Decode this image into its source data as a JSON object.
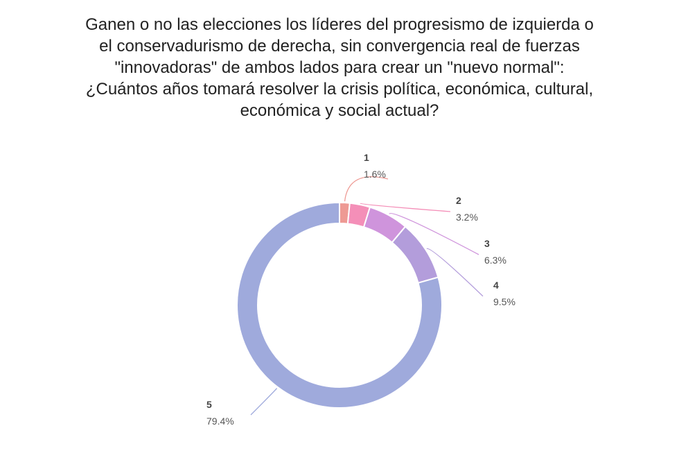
{
  "chart_data": {
    "type": "pie",
    "title": "Ganen o no las elecciones los líderes del progresismo de izquierda o el conservadurismo de derecha, sin convergencia real de fuerzas \"innovadoras\" de ambos lados para crear un \"nuevo normal\": ¿Cuántos años tomará resolver la crisis política, económica, cultural, económica y social actual?",
    "title_lines": [
      "Ganen o no las elecciones los líderes del progresismo de izquierda o",
      "el conservadurismo de derecha, sin convergencia real de fuerzas",
      "\"innovadoras\" de ambos lados para crear un \"nuevo normal\":",
      "¿Cuántos años tomará resolver la crisis política, económica, cultural,",
      "económica y social actual?"
    ],
    "donut": true,
    "slices": [
      {
        "label": "1",
        "value": 1.6,
        "display": "1.6%",
        "color": "#ee9a94"
      },
      {
        "label": "2",
        "value": 3.2,
        "display": "3.2%",
        "color": "#f48fb8"
      },
      {
        "label": "3",
        "value": 6.3,
        "display": "6.3%",
        "color": "#cf94dc"
      },
      {
        "label": "4",
        "value": 9.5,
        "display": "9.5%",
        "color": "#b39ddb"
      },
      {
        "label": "5",
        "value": 79.4,
        "display": "79.4%",
        "color": "#9faadc"
      }
    ]
  }
}
